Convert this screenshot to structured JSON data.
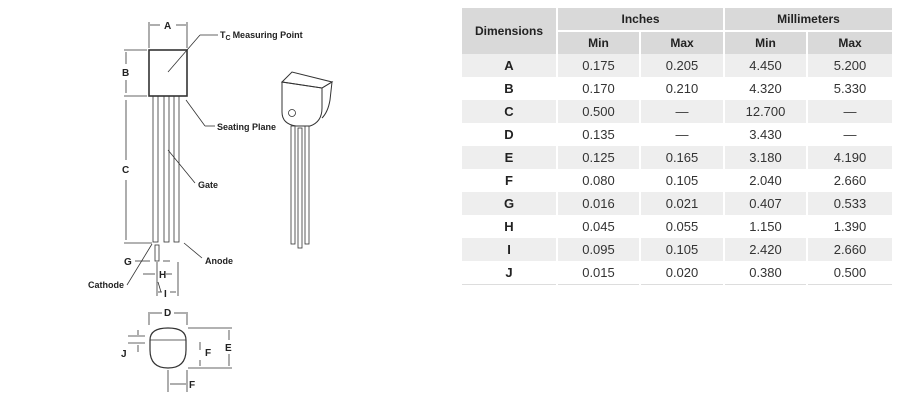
{
  "drawing": {
    "labels": {
      "A": "A",
      "B": "B",
      "C": "C",
      "D": "D",
      "E": "E",
      "F": "F",
      "G": "G",
      "H": "H",
      "I": "I",
      "J": "J"
    },
    "tc_measuring_point": "Measuring Point",
    "tc_T": "T",
    "tc_sub": "C",
    "seating_plane": "Seating Plane",
    "gate": "Gate",
    "anode": "Anode",
    "cathode": "Cathode"
  },
  "table": {
    "header": {
      "dimensions": "Dimensions",
      "inches": "Inches",
      "millimeters": "Millimeters",
      "min": "Min",
      "max": "Max"
    },
    "rows": [
      {
        "dim": "A",
        "in_min": "0.175",
        "in_max": "0.205",
        "mm_min": "4.450",
        "mm_max": "5.200"
      },
      {
        "dim": "B",
        "in_min": "0.170",
        "in_max": "0.210",
        "mm_min": "4.320",
        "mm_max": "5.330"
      },
      {
        "dim": "C",
        "in_min": "0.500",
        "in_max": "—",
        "mm_min": "12.700",
        "mm_max": "—"
      },
      {
        "dim": "D",
        "in_min": "0.135",
        "in_max": "—",
        "mm_min": "3.430",
        "mm_max": "—"
      },
      {
        "dim": "E",
        "in_min": "0.125",
        "in_max": "0.165",
        "mm_min": "3.180",
        "mm_max": "4.190"
      },
      {
        "dim": "F",
        "in_min": "0.080",
        "in_max": "0.105",
        "mm_min": "2.040",
        "mm_max": "2.660"
      },
      {
        "dim": "G",
        "in_min": "0.016",
        "in_max": "0.021",
        "mm_min": "0.407",
        "mm_max": "0.533"
      },
      {
        "dim": "H",
        "in_min": "0.045",
        "in_max": "0.055",
        "mm_min": "1.150",
        "mm_max": "1.390"
      },
      {
        "dim": "I",
        "in_min": "0.095",
        "in_max": "0.105",
        "mm_min": "2.420",
        "mm_max": "2.660"
      },
      {
        "dim": "J",
        "in_min": "0.015",
        "in_max": "0.020",
        "mm_min": "0.380",
        "mm_max": "0.500"
      }
    ]
  }
}
